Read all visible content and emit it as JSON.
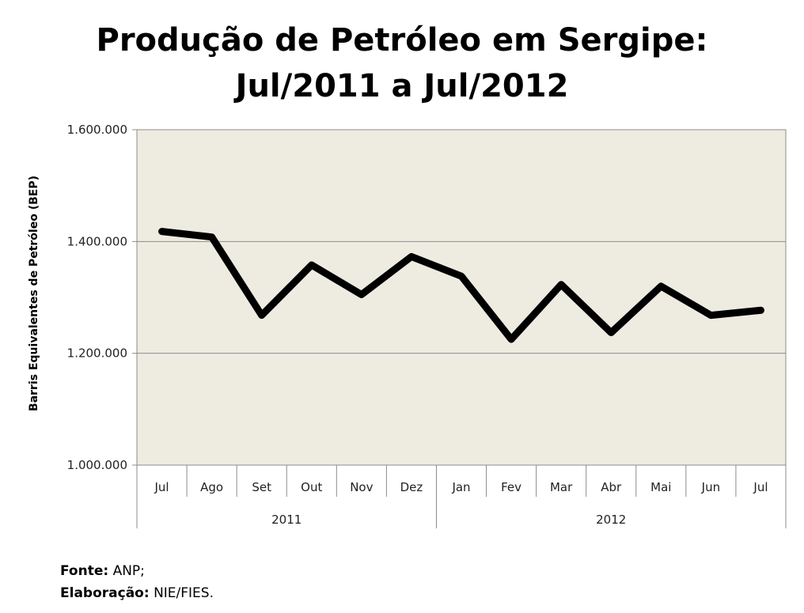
{
  "chart_data": {
    "type": "line",
    "title_line1": "Produção de Petróleo em Sergipe:",
    "title_line2": "Jul/2011 a Jul/2012",
    "ylabel": "Barris Equivalentes de Petróleo (BEP)",
    "categories": [
      "Jul",
      "Ago",
      "Set",
      "Out",
      "Nov",
      "Dez",
      "Jan",
      "Fev",
      "Mar",
      "Abr",
      "Mai",
      "Jun",
      "Jul"
    ],
    "year_groups": [
      {
        "label": "2011",
        "count": 6
      },
      {
        "label": "2012",
        "count": 7
      }
    ],
    "series": [
      {
        "values": [
          1418000,
          1408000,
          1268000,
          1358000,
          1305000,
          1373000,
          1338000,
          1225000,
          1323000,
          1237000,
          1320000,
          1268000,
          1277000
        ]
      }
    ],
    "ylim": [
      1000000,
      1600000
    ],
    "yticks": [
      1000000,
      1200000,
      1400000,
      1600000
    ],
    "ytick_labels": [
      "1.000.000",
      "1.200.000",
      "1.400.000",
      "1.600.000"
    ],
    "grid": true,
    "plot_background": "#EEECE1",
    "line_color": "#000000"
  },
  "footer": {
    "source_label": "Fonte:",
    "source_value": "ANP;",
    "prepared_label": "Elaboração:",
    "prepared_value": "NIE/FIES."
  }
}
